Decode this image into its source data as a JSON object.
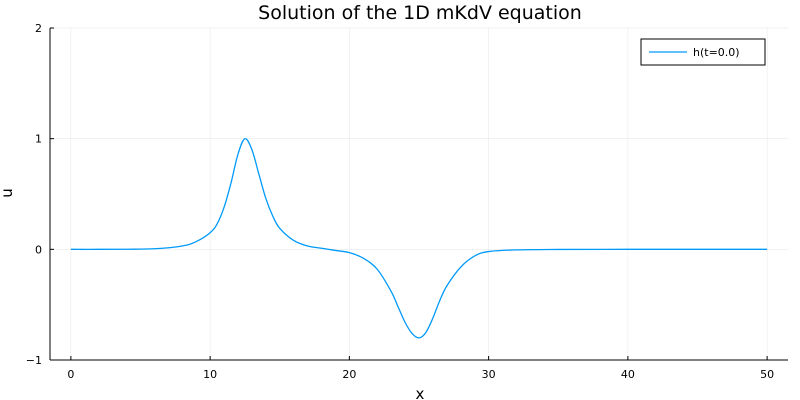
{
  "chart_data": {
    "type": "line",
    "title": "Solution of the 1D mKdV equation",
    "xlabel": "x",
    "ylabel": "u",
    "xlim": [
      -1.5,
      51.5
    ],
    "ylim": [
      -1,
      2
    ],
    "xticks": [
      0,
      10,
      20,
      30,
      40,
      50
    ],
    "yticks": [
      -1,
      0,
      1,
      2
    ],
    "grid": true,
    "legend_position": "top-right",
    "series": [
      {
        "name": "h(t=0.0)",
        "color": "#009AFA",
        "x": [
          0,
          2,
          4,
          6,
          8,
          9,
          10,
          10.5,
          11,
          11.5,
          12,
          12.5,
          13,
          13.5,
          14,
          14.5,
          15,
          16,
          17,
          18,
          19,
          20,
          21,
          22,
          23,
          23.5,
          24,
          24.5,
          25,
          25.5,
          26,
          26.5,
          27,
          28,
          29,
          30,
          32,
          35,
          40,
          45,
          50
        ],
        "y": [
          0.0,
          0.0,
          0.001,
          0.005,
          0.03,
          0.07,
          0.15,
          0.23,
          0.38,
          0.6,
          0.86,
          1.0,
          0.9,
          0.68,
          0.46,
          0.3,
          0.19,
          0.08,
          0.03,
          0.01,
          -0.01,
          -0.03,
          -0.08,
          -0.18,
          -0.38,
          -0.52,
          -0.66,
          -0.76,
          -0.8,
          -0.75,
          -0.62,
          -0.46,
          -0.33,
          -0.16,
          -0.06,
          -0.02,
          -0.005,
          -0.001,
          0.0,
          0.0,
          0.0
        ]
      }
    ]
  }
}
